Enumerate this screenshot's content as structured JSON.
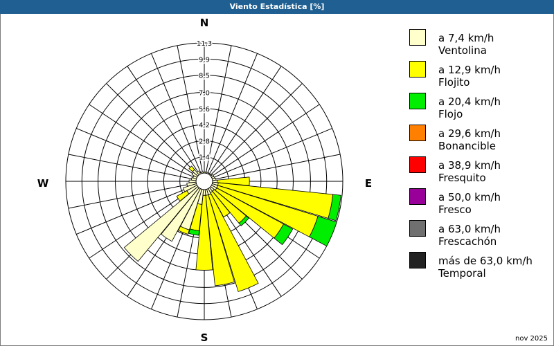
{
  "window": {
    "title": "Viento Estadística [%]"
  },
  "footer": {
    "date": "nov 2025"
  },
  "colors": {
    "background": "#ffffff",
    "titlebar": "#1f5f91",
    "grid": "#000000"
  },
  "chart_data": {
    "type": "wind-rose",
    "unit": "%",
    "max_value": 11.3,
    "ring_labels": [
      "11,3",
      "9,9",
      "8,5",
      "7,0",
      "5,6",
      "4,2",
      "2,8",
      "1,4"
    ],
    "ring_values": [
      11.3,
      9.9,
      8.5,
      7.0,
      5.6,
      4.2,
      2.8,
      1.4
    ],
    "compass": {
      "n": "N",
      "e": "E",
      "s": "S",
      "w": "W"
    },
    "bins": [
      {
        "speed": "a 7,4 km/h",
        "name": "Ventolina",
        "color": "#ffffcc"
      },
      {
        "speed": "a 12,9 km/h",
        "name": "Flojito",
        "color": "#ffff00"
      },
      {
        "speed": "a 20,4 km/h",
        "name": "Flojo",
        "color": "#00ee00"
      },
      {
        "speed": "a 29,6 km/h",
        "name": "Bonancible",
        "color": "#ff8000"
      },
      {
        "speed": "a 38,9 km/h",
        "name": "Fresquito",
        "color": "#ff0000"
      },
      {
        "speed": "a 50,0 km/h",
        "name": "Fresco",
        "color": "#990099"
      },
      {
        "speed": "a 63,0 km/h",
        "name": "Frescachón",
        "color": "#707070"
      },
      {
        "speed": "más de 63,0 km/h",
        "name": "Temporal",
        "color": "#222222"
      }
    ],
    "directions": [
      {
        "dir": "N",
        "values": [
          0.1,
          0,
          0,
          0,
          0,
          0,
          0,
          0
        ]
      },
      {
        "dir": "N-NNE",
        "values": [
          0.1,
          0,
          0,
          0,
          0,
          0,
          0,
          0
        ]
      },
      {
        "dir": "NNE",
        "values": [
          0.1,
          0,
          0,
          0,
          0,
          0,
          0,
          0
        ]
      },
      {
        "dir": "NNE-NE",
        "values": [
          0.1,
          0,
          0,
          0,
          0,
          0,
          0,
          0
        ]
      },
      {
        "dir": "NE",
        "values": [
          0.1,
          0,
          0,
          0,
          0,
          0,
          0,
          0
        ]
      },
      {
        "dir": "NE-ENE",
        "values": [
          0.2,
          0,
          0,
          0,
          0,
          0,
          0,
          0
        ]
      },
      {
        "dir": "ENE",
        "values": [
          0.2,
          0,
          0,
          0,
          0,
          0,
          0,
          0
        ]
      },
      {
        "dir": "ENE-E",
        "values": [
          0.3,
          0,
          0,
          0,
          0,
          0,
          0,
          0
        ]
      },
      {
        "dir": "E",
        "values": [
          0.4,
          2.8,
          0,
          0,
          0,
          0,
          0,
          0
        ]
      },
      {
        "dir": "E-ESE",
        "values": [
          0.5,
          10.0,
          0.7,
          0,
          0,
          0,
          0,
          0
        ]
      },
      {
        "dir": "ESE",
        "values": [
          0.5,
          9.1,
          1.7,
          0,
          0,
          0,
          0,
          0
        ]
      },
      {
        "dir": "ESE-SE",
        "values": [
          0.5,
          6.6,
          0.9,
          0,
          0,
          0,
          0,
          0
        ]
      },
      {
        "dir": "SE",
        "values": [
          0.4,
          3.6,
          0.3,
          0,
          0,
          0,
          0,
          0
        ]
      },
      {
        "dir": "SE-SSE",
        "values": [
          0.4,
          2.4,
          0,
          0,
          0,
          0,
          0,
          0
        ]
      },
      {
        "dir": "SSE",
        "values": [
          0.5,
          8.8,
          0,
          0,
          0,
          0,
          0,
          0
        ]
      },
      {
        "dir": "SSE-S",
        "values": [
          0.5,
          7.9,
          0,
          0,
          0,
          0,
          0,
          0
        ]
      },
      {
        "dir": "S",
        "values": [
          0.5,
          6.5,
          0,
          0,
          0,
          0,
          0,
          0
        ]
      },
      {
        "dir": "S-SSW",
        "values": [
          1.3,
          2.3,
          0.4,
          0,
          0,
          0,
          0,
          0
        ]
      },
      {
        "dir": "SSW",
        "values": [
          3.7,
          0.4,
          0,
          0,
          0,
          0,
          0,
          0
        ]
      },
      {
        "dir": "SSW-SW",
        "values": [
          5.2,
          0,
          0,
          0,
          0,
          0,
          0,
          0
        ]
      },
      {
        "dir": "SW",
        "values": [
          8.3,
          0,
          0,
          0,
          0,
          0,
          0,
          0
        ]
      },
      {
        "dir": "SW-WSW",
        "values": [
          1.0,
          1.0,
          0,
          0,
          0,
          0,
          0,
          0
        ]
      },
      {
        "dir": "WSW",
        "values": [
          1.2,
          0,
          0,
          0,
          0,
          0,
          0,
          0
        ]
      },
      {
        "dir": "WSW-W",
        "values": [
          0.8,
          0,
          0,
          0,
          0,
          0,
          0,
          0
        ]
      },
      {
        "dir": "W",
        "values": [
          0.6,
          0,
          0,
          0,
          0,
          0,
          0,
          0
        ]
      },
      {
        "dir": "W-WNW",
        "values": [
          0.4,
          0,
          0,
          0,
          0,
          0,
          0,
          0
        ]
      },
      {
        "dir": "WNW",
        "values": [
          0.3,
          0,
          0,
          0,
          0,
          0,
          0,
          0
        ]
      },
      {
        "dir": "WNW-NW",
        "values": [
          0.5,
          0,
          0,
          0,
          0,
          0,
          0,
          0
        ]
      },
      {
        "dir": "NW",
        "values": [
          0.6,
          0.4,
          0,
          0,
          0,
          0,
          0,
          0
        ]
      },
      {
        "dir": "NW-NNW",
        "values": [
          0.3,
          0,
          0,
          0,
          0,
          0,
          0,
          0
        ]
      },
      {
        "dir": "NNW",
        "values": [
          0.1,
          0,
          0,
          0,
          0,
          0,
          0,
          0
        ]
      },
      {
        "dir": "NNW-N",
        "values": [
          0.1,
          0,
          0,
          0,
          0,
          0,
          0,
          0
        ]
      }
    ]
  }
}
